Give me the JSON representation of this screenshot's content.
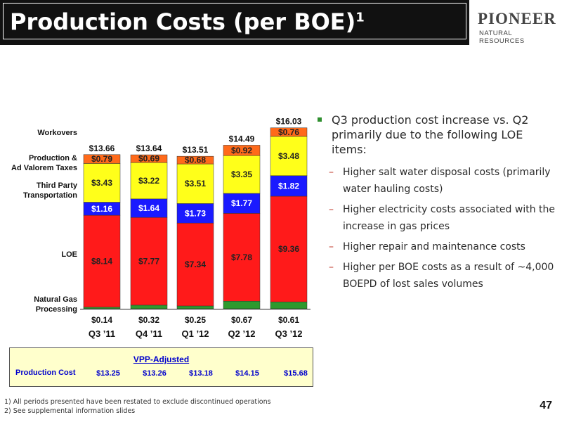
{
  "header": {
    "title": "Production Costs (per BOE)",
    "title_sup": "1",
    "logo_main": "PIONEER",
    "logo_sub": "NATURAL RESOURCES"
  },
  "chart_data": {
    "type": "bar",
    "stacked": true,
    "categories": [
      "Q3 ’11",
      "Q4 ’11",
      "Q1 ’12",
      "Q2 ’12",
      "Q3 ’12"
    ],
    "series": [
      {
        "name": "Natural Gas Processing",
        "color": "#2e9a2e",
        "values": [
          0.14,
          0.32,
          0.25,
          0.67,
          0.61
        ],
        "labels": [
          "$0.14",
          "$0.32",
          "$0.25",
          "$0.67",
          "$0.61"
        ]
      },
      {
        "name": "LOE",
        "color": "#ff1a1a",
        "values": [
          8.14,
          7.77,
          7.34,
          7.78,
          9.36
        ],
        "labels": [
          "$8.14",
          "$7.77",
          "$7.34",
          "$7.78",
          "$9.36"
        ]
      },
      {
        "name": "Third Party Transportation",
        "color": "#1a1aff",
        "values": [
          1.16,
          1.64,
          1.73,
          1.77,
          1.82
        ],
        "labels": [
          "$1.16",
          "$1.64",
          "$1.73",
          "$1.77",
          "$1.82"
        ]
      },
      {
        "name": "Production & Ad Valorem Taxes",
        "color": "#ffff1a",
        "values": [
          3.43,
          3.22,
          3.51,
          3.35,
          3.48
        ],
        "labels": [
          "$3.43",
          "$3.22",
          "$3.51",
          "$3.35",
          "$3.48"
        ]
      },
      {
        "name": "Workovers",
        "color": "#ff6a1a",
        "values": [
          0.79,
          0.69,
          0.68,
          0.92,
          0.76
        ],
        "labels": [
          "$0.79",
          "$0.69",
          "$0.68",
          "$0.92",
          "$0.76"
        ]
      }
    ],
    "totals": [
      "$13.66",
      "$13.64",
      "$13.51",
      "$14.49",
      "$16.03"
    ],
    "legend_labels": [
      {
        "series": 4,
        "lines": [
          "Workovers"
        ]
      },
      {
        "series": 3,
        "lines": [
          "Production &",
          "Ad Valorem Taxes"
        ]
      },
      {
        "series": 2,
        "lines": [
          "Third Party",
          "Transportation"
        ]
      },
      {
        "series": 1,
        "lines": [
          "LOE"
        ]
      },
      {
        "series": 0,
        "lines": [
          "Natural Gas",
          "Processing"
        ]
      }
    ],
    "legend_placement": "left",
    "ylim": [
      0,
      17
    ],
    "grid": false
  },
  "commentary": {
    "headline": "Q3 production cost increase vs. Q2 primarily due to the following LOE items:",
    "items": [
      "Higher salt water disposal costs (primarily water hauling costs)",
      "Higher electricity costs associated with the increase in gas prices",
      "Higher repair and maintenance costs",
      "Higher per BOE costs as a result of ~4,000 BOEPD of lost sales volumes"
    ]
  },
  "vpp": {
    "title": "VPP-Adjusted",
    "row_label": "Production Cost",
    "values": [
      "$13.25",
      "$13.26",
      "$13.18",
      "$14.15",
      "$15.68"
    ]
  },
  "footnotes": [
    "1)  All periods presented have been restated to exclude discontinued operations",
    "2)  See supplemental information slides"
  ],
  "page_number": "47"
}
